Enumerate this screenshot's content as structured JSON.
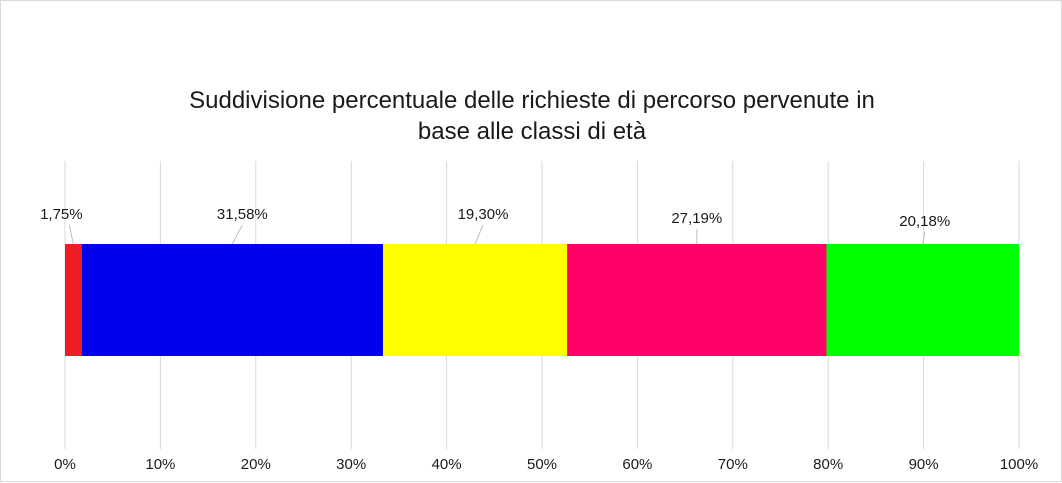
{
  "chart_data": {
    "type": "bar",
    "orientation": "horizontal",
    "stacked": true,
    "percent": true,
    "title_lines": [
      "Suddivisione percentuale delle richieste di percorso pervenute in",
      "base alle classi di età"
    ],
    "xlabel": "",
    "ylabel": "",
    "xlim": [
      0,
      100
    ],
    "grid": "vertical",
    "x_ticks": [
      "0%",
      "10%",
      "20%",
      "30%",
      "40%",
      "50%",
      "60%",
      "70%",
      "80%",
      "90%",
      "100%"
    ],
    "series": [
      {
        "values": [
          1.75
        ],
        "label": "1,75%",
        "color": "#ee1c25"
      },
      {
        "values": [
          31.58
        ],
        "label": "31,58%",
        "color": "#0000ee"
      },
      {
        "values": [
          19.3
        ],
        "label": "19,30%",
        "color": "#ffff00"
      },
      {
        "values": [
          27.19
        ],
        "label": "27,19%",
        "color": "#ff0066"
      },
      {
        "values": [
          20.18
        ],
        "label": "20,18%",
        "color": "#00ff00"
      }
    ]
  }
}
